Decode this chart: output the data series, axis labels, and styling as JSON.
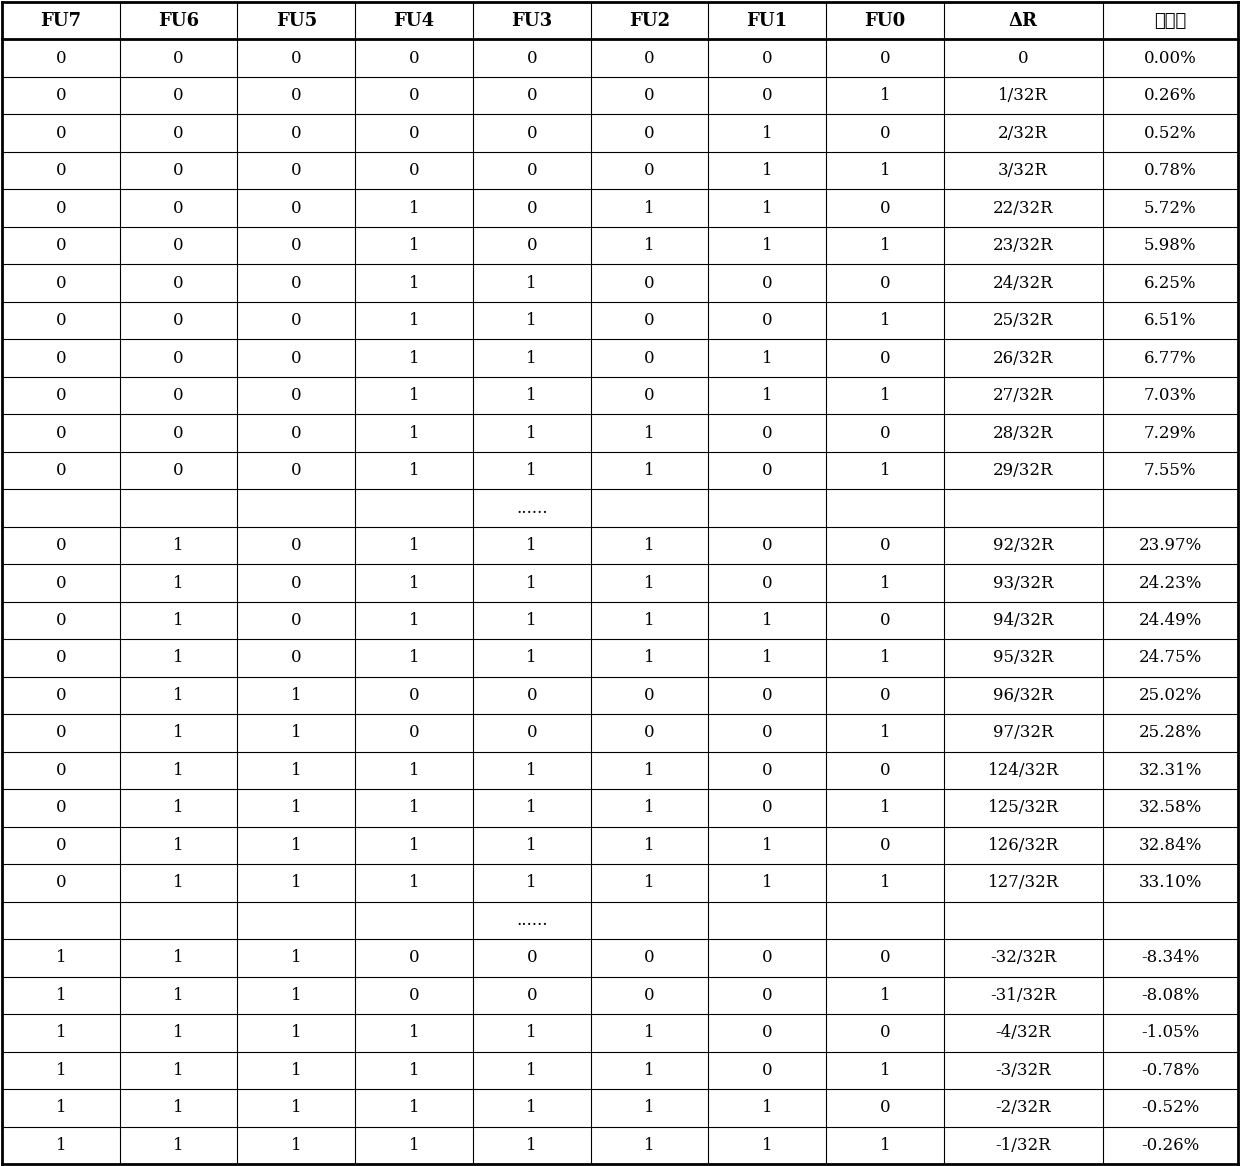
{
  "headers": [
    "FU7",
    "FU6",
    "FU5",
    "FU4",
    "FU3",
    "FU2",
    "FU1",
    "FU0",
    "ΔR",
    "变化率"
  ],
  "rows": [
    [
      "0",
      "0",
      "0",
      "0",
      "0",
      "0",
      "0",
      "0",
      "0",
      "0.00%"
    ],
    [
      "0",
      "0",
      "0",
      "0",
      "0",
      "0",
      "0",
      "1",
      "1/32R",
      "0.26%"
    ],
    [
      "0",
      "0",
      "0",
      "0",
      "0",
      "0",
      "1",
      "0",
      "2/32R",
      "0.52%"
    ],
    [
      "0",
      "0",
      "0",
      "0",
      "0",
      "0",
      "1",
      "1",
      "3/32R",
      "0.78%"
    ],
    [
      "0",
      "0",
      "0",
      "1",
      "0",
      "1",
      "1",
      "0",
      "22/32R",
      "5.72%"
    ],
    [
      "0",
      "0",
      "0",
      "1",
      "0",
      "1",
      "1",
      "1",
      "23/32R",
      "5.98%"
    ],
    [
      "0",
      "0",
      "0",
      "1",
      "1",
      "0",
      "0",
      "0",
      "24/32R",
      "6.25%"
    ],
    [
      "0",
      "0",
      "0",
      "1",
      "1",
      "0",
      "0",
      "1",
      "25/32R",
      "6.51%"
    ],
    [
      "0",
      "0",
      "0",
      "1",
      "1",
      "0",
      "1",
      "0",
      "26/32R",
      "6.77%"
    ],
    [
      "0",
      "0",
      "0",
      "1",
      "1",
      "0",
      "1",
      "1",
      "27/32R",
      "7.03%"
    ],
    [
      "0",
      "0",
      "0",
      "1",
      "1",
      "1",
      "0",
      "0",
      "28/32R",
      "7.29%"
    ],
    [
      "0",
      "0",
      "0",
      "1",
      "1",
      "1",
      "0",
      "1",
      "29/32R",
      "7.55%"
    ],
    [
      "",
      "",
      "",
      "",
      "......",
      "",
      "",
      "",
      "",
      ""
    ],
    [
      "0",
      "1",
      "0",
      "1",
      "1",
      "1",
      "0",
      "0",
      "92/32R",
      "23.97%"
    ],
    [
      "0",
      "1",
      "0",
      "1",
      "1",
      "1",
      "0",
      "1",
      "93/32R",
      "24.23%"
    ],
    [
      "0",
      "1",
      "0",
      "1",
      "1",
      "1",
      "1",
      "0",
      "94/32R",
      "24.49%"
    ],
    [
      "0",
      "1",
      "0",
      "1",
      "1",
      "1",
      "1",
      "1",
      "95/32R",
      "24.75%"
    ],
    [
      "0",
      "1",
      "1",
      "0",
      "0",
      "0",
      "0",
      "0",
      "96/32R",
      "25.02%"
    ],
    [
      "0",
      "1",
      "1",
      "0",
      "0",
      "0",
      "0",
      "1",
      "97/32R",
      "25.28%"
    ],
    [
      "0",
      "1",
      "1",
      "1",
      "1",
      "1",
      "0",
      "0",
      "124/32R",
      "32.31%"
    ],
    [
      "0",
      "1",
      "1",
      "1",
      "1",
      "1",
      "0",
      "1",
      "125/32R",
      "32.58%"
    ],
    [
      "0",
      "1",
      "1",
      "1",
      "1",
      "1",
      "1",
      "0",
      "126/32R",
      "32.84%"
    ],
    [
      "0",
      "1",
      "1",
      "1",
      "1",
      "1",
      "1",
      "1",
      "127/32R",
      "33.10%"
    ],
    [
      "",
      "",
      "",
      "",
      "......",
      "",
      "",
      "",
      "",
      ""
    ],
    [
      "1",
      "1",
      "1",
      "0",
      "0",
      "0",
      "0",
      "0",
      "-32/32R",
      "-8.34%"
    ],
    [
      "1",
      "1",
      "1",
      "0",
      "0",
      "0",
      "0",
      "1",
      "-31/32R",
      "-8.08%"
    ],
    [
      "1",
      "1",
      "1",
      "1",
      "1",
      "1",
      "0",
      "0",
      "-4/32R",
      "-1.05%"
    ],
    [
      "1",
      "1",
      "1",
      "1",
      "1",
      "1",
      "0",
      "1",
      "-3/32R",
      "-0.78%"
    ],
    [
      "1",
      "1",
      "1",
      "1",
      "1",
      "1",
      "1",
      "0",
      "-2/32R",
      "-0.52%"
    ],
    [
      "1",
      "1",
      "1",
      "1",
      "1",
      "1",
      "1",
      "1",
      "-1/32R",
      "-0.26%"
    ]
  ],
  "col_widths_ratio": [
    1.0,
    1.0,
    1.0,
    1.0,
    1.0,
    1.0,
    1.0,
    1.0,
    1.35,
    1.15
  ],
  "dots_row_indices": [
    12,
    23
  ],
  "fig_width": 12.4,
  "fig_height": 11.66,
  "dpi": 100,
  "header_fontsize": 13,
  "cell_fontsize": 12,
  "header_fontweight": "bold",
  "cell_fontweight": "normal",
  "text_color": "#000000",
  "bg_color": "#ffffff",
  "border_color": "#000000",
  "thin_lw": 0.8,
  "thick_lw": 2.0,
  "outer_lw": 2.0
}
